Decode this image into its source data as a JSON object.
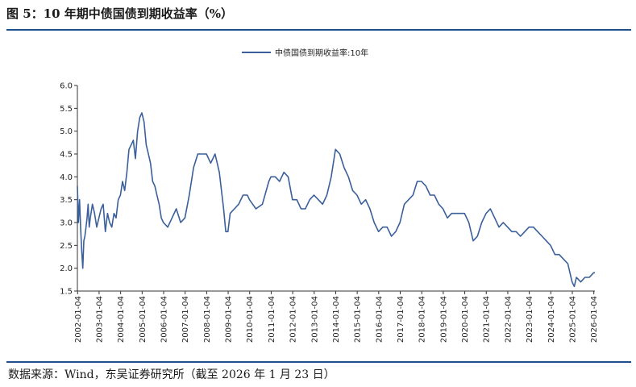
{
  "figure": {
    "title": "图 5：10 年期中债国债到期收益率（%）",
    "source": "数据来源：Wind，东吴证券研究所（截至 2026 年 1 月 23 日）"
  },
  "colors": {
    "accent": "#1f4e8c",
    "series": "#3a5f9a",
    "axis": "#333333"
  },
  "chart_data": {
    "type": "line",
    "title": "",
    "xlabel": "",
    "ylabel": "",
    "legend": [
      "中债国债到期收益率:10年"
    ],
    "legend_position": "top-center",
    "ylim": [
      1.5,
      6.0
    ],
    "yticks": [
      1.5,
      2.0,
      2.5,
      3.0,
      3.5,
      4.0,
      4.5,
      5.0,
      5.5,
      6.0
    ],
    "ytick_labels": [
      "1.5",
      "2.0",
      "2.5",
      "3.0",
      "3.5",
      "4.0",
      "4.5",
      "5.0",
      "5.5",
      "6.0"
    ],
    "xlim": [
      2002.0,
      2026.06
    ],
    "xtick_labels": [
      "2002-01-04",
      "2003-01-04",
      "2004-01-04",
      "2005-01-04",
      "2006-01-04",
      "2007-01-04",
      "2008-01-04",
      "2009-01-04",
      "2010-01-04",
      "2011-01-04",
      "2012-01-04",
      "2013-01-04",
      "2014-01-04",
      "2015-01-04",
      "2016-01-04",
      "2017-01-04",
      "2018-01-04",
      "2019-01-04",
      "2020-01-04",
      "2021-01-04",
      "2022-01-04",
      "2023-01-04",
      "2024-01-04",
      "2025-01-04",
      "2026-01-04"
    ],
    "series": [
      {
        "name": "中债国债到期收益率:10年",
        "x": [
          2002.0,
          2002.05,
          2002.1,
          2002.15,
          2002.2,
          2002.25,
          2002.3,
          2002.35,
          2002.4,
          2002.45,
          2002.5,
          2002.55,
          2002.6,
          2002.7,
          2002.8,
          2002.9,
          2003.0,
          2003.1,
          2003.2,
          2003.3,
          2003.4,
          2003.5,
          2003.6,
          2003.7,
          2003.8,
          2003.9,
          2004.0,
          2004.1,
          2004.2,
          2004.3,
          2004.4,
          2004.5,
          2004.6,
          2004.7,
          2004.8,
          2004.9,
          2005.0,
          2005.1,
          2005.2,
          2005.3,
          2005.4,
          2005.5,
          2005.6,
          2005.7,
          2005.8,
          2005.9,
          2006.0,
          2006.2,
          2006.4,
          2006.6,
          2006.8,
          2007.0,
          2007.2,
          2007.4,
          2007.6,
          2007.8,
          2008.0,
          2008.2,
          2008.4,
          2008.6,
          2008.8,
          2008.9,
          2009.0,
          2009.1,
          2009.3,
          2009.5,
          2009.7,
          2009.9,
          2010.0,
          2010.3,
          2010.6,
          2010.9,
          2011.0,
          2011.2,
          2011.4,
          2011.6,
          2011.8,
          2012.0,
          2012.2,
          2012.4,
          2012.6,
          2012.8,
          2013.0,
          2013.2,
          2013.4,
          2013.6,
          2013.8,
          2014.0,
          2014.2,
          2014.4,
          2014.6,
          2014.8,
          2015.0,
          2015.2,
          2015.4,
          2015.6,
          2015.8,
          2016.0,
          2016.2,
          2016.4,
          2016.6,
          2016.8,
          2017.0,
          2017.2,
          2017.4,
          2017.6,
          2017.8,
          2018.0,
          2018.2,
          2018.4,
          2018.6,
          2018.8,
          2019.0,
          2019.2,
          2019.4,
          2019.6,
          2019.8,
          2020.0,
          2020.2,
          2020.4,
          2020.6,
          2020.8,
          2021.0,
          2021.2,
          2021.4,
          2021.6,
          2021.8,
          2022.0,
          2022.2,
          2022.4,
          2022.6,
          2022.8,
          2023.0,
          2023.2,
          2023.4,
          2023.6,
          2023.8,
          2024.0,
          2024.2,
          2024.4,
          2024.6,
          2024.8,
          2025.0,
          2025.1,
          2025.2,
          2025.4,
          2025.6,
          2025.8,
          2026.0,
          2026.06
        ],
        "values": [
          3.8,
          3.0,
          3.5,
          2.9,
          2.4,
          2.0,
          2.6,
          2.7,
          2.9,
          3.1,
          3.4,
          2.9,
          3.1,
          3.4,
          3.2,
          2.9,
          3.1,
          3.3,
          3.4,
          2.8,
          3.2,
          3.0,
          2.9,
          3.2,
          3.1,
          3.5,
          3.6,
          3.9,
          3.7,
          4.1,
          4.6,
          4.7,
          4.8,
          4.4,
          5.0,
          5.3,
          5.4,
          5.2,
          4.7,
          4.5,
          4.3,
          3.9,
          3.8,
          3.6,
          3.4,
          3.1,
          3.0,
          2.9,
          3.1,
          3.3,
          3.0,
          3.1,
          3.6,
          4.2,
          4.5,
          4.5,
          4.5,
          4.3,
          4.5,
          4.1,
          3.3,
          2.8,
          2.8,
          3.2,
          3.3,
          3.4,
          3.6,
          3.6,
          3.5,
          3.3,
          3.4,
          3.9,
          4.0,
          4.0,
          3.9,
          4.1,
          4.0,
          3.5,
          3.5,
          3.3,
          3.3,
          3.5,
          3.6,
          3.5,
          3.4,
          3.6,
          4.0,
          4.6,
          4.5,
          4.2,
          4.0,
          3.7,
          3.6,
          3.4,
          3.5,
          3.3,
          3.0,
          2.8,
          2.9,
          2.9,
          2.7,
          2.8,
          3.0,
          3.4,
          3.5,
          3.6,
          3.9,
          3.9,
          3.8,
          3.6,
          3.6,
          3.4,
          3.3,
          3.1,
          3.2,
          3.2,
          3.2,
          3.2,
          3.0,
          2.6,
          2.7,
          3.0,
          3.2,
          3.3,
          3.1,
          2.9,
          3.0,
          2.9,
          2.8,
          2.8,
          2.7,
          2.8,
          2.9,
          2.9,
          2.8,
          2.7,
          2.6,
          2.5,
          2.3,
          2.3,
          2.2,
          2.1,
          1.7,
          1.6,
          1.8,
          1.7,
          1.8,
          1.8,
          1.9,
          1.9
        ]
      }
    ]
  }
}
